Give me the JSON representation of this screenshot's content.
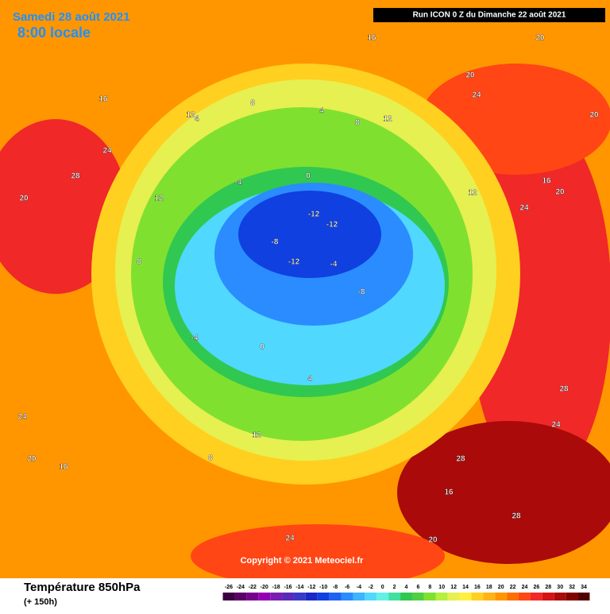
{
  "header": {
    "date": "Samedi 28 août 2021",
    "time": "8:00 locale",
    "run": "Run ICON 0 Z du Dimanche 22 août 2021",
    "copyright": "Copyright © 2021 Meteociel.fr"
  },
  "footer": {
    "title": "Température 850hPa",
    "lead": "(+ 150h)"
  },
  "scale": {
    "ticks": [
      -26,
      -24,
      -22,
      -20,
      -18,
      -16,
      -14,
      -12,
      -10,
      -8,
      -6,
      -4,
      -2,
      0,
      2,
      4,
      6,
      8,
      10,
      12,
      14,
      16,
      18,
      20,
      22,
      24,
      26,
      28,
      30,
      32,
      34
    ],
    "colors": [
      "#3d0040",
      "#5a0066",
      "#78008c",
      "#9600b4",
      "#7a1fb0",
      "#5a2ab8",
      "#3a3ac8",
      "#1a28c8",
      "#1040e0",
      "#1e64f0",
      "#2a8cff",
      "#3cb4ff",
      "#50d8ff",
      "#64f0e6",
      "#40e0a0",
      "#30c850",
      "#50d040",
      "#80e030",
      "#b4f03c",
      "#e6f050",
      "#fff040",
      "#ffd020",
      "#ffb414",
      "#ff9600",
      "#ff6e00",
      "#ff4614",
      "#f02828",
      "#d21414",
      "#aa0a0a",
      "#800000",
      "#500000"
    ]
  },
  "map_labels": [
    16,
    12,
    8,
    4,
    8,
    12,
    16,
    20,
    20,
    24,
    20,
    28,
    24,
    20,
    12,
    8,
    4,
    0,
    -4,
    -8,
    -12,
    -12,
    -12,
    -8,
    -4,
    0,
    -4,
    4,
    8,
    12,
    16,
    20,
    24,
    28,
    24,
    28,
    20,
    16,
    12,
    16,
    20,
    24,
    28,
    24
  ]
}
